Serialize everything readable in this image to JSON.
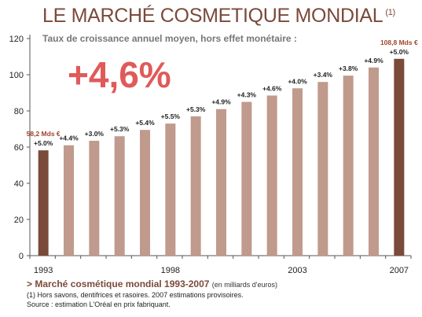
{
  "header": {
    "title": "LE MARCHÉ COSMETIQUE MONDIAL",
    "title_note": "(1)",
    "subtitle": "Taux de croissance annuel moyen, hors effet monétaire :",
    "headline": "+4,6%"
  },
  "chart_data": {
    "type": "bar",
    "categories": [
      "1993",
      "1994",
      "1995",
      "1996",
      "1997",
      "1998",
      "1999",
      "2000",
      "2001",
      "2002",
      "2003",
      "2004",
      "2005",
      "2006",
      "2007"
    ],
    "values": [
      58.2,
      61,
      63.5,
      66,
      69.5,
      73,
      77,
      81,
      85,
      88.5,
      92.5,
      96,
      99.5,
      104,
      108.8
    ],
    "growth_labels": [
      "+5.0%",
      "+4.4%",
      "+3.0%",
      "+5.3%",
      "+5.4%",
      "+5.5%",
      "+5.3%",
      "+4.9%",
      "+4.3%",
      "+4.6%",
      "+4.0%",
      "+3.4%",
      "+3.8%",
      "+4.9%",
      "+5.0%"
    ],
    "value_labels": [
      {
        "index": 0,
        "text": "58,2 Mds €"
      },
      {
        "index": 14,
        "text": "108,8 Mds €"
      }
    ],
    "x_tick_labels": [
      {
        "index": 0,
        "text": "1993"
      },
      {
        "index": 5,
        "text": "1998"
      },
      {
        "index": 10,
        "text": "2003"
      },
      {
        "index": 14,
        "text": "2007"
      }
    ],
    "ylim": [
      0,
      120
    ],
    "yticks": [
      0,
      20,
      40,
      60,
      80,
      100,
      120
    ],
    "colors": {
      "highlight": "#7a4a3a",
      "normal": "#c09a8c",
      "value_label": "#a0442c"
    },
    "highlight_indices": [
      0,
      14
    ]
  },
  "footer": {
    "caption": "> Marché cosmétique mondial 1993-2007",
    "caption_unit": "(en milliards d'euros)",
    "note": "(1) Hors savons, dentifrices et rasoires. 2007 estimations provisoires.",
    "source": "Source : estimation L'Oréal en prix fabriquant."
  }
}
